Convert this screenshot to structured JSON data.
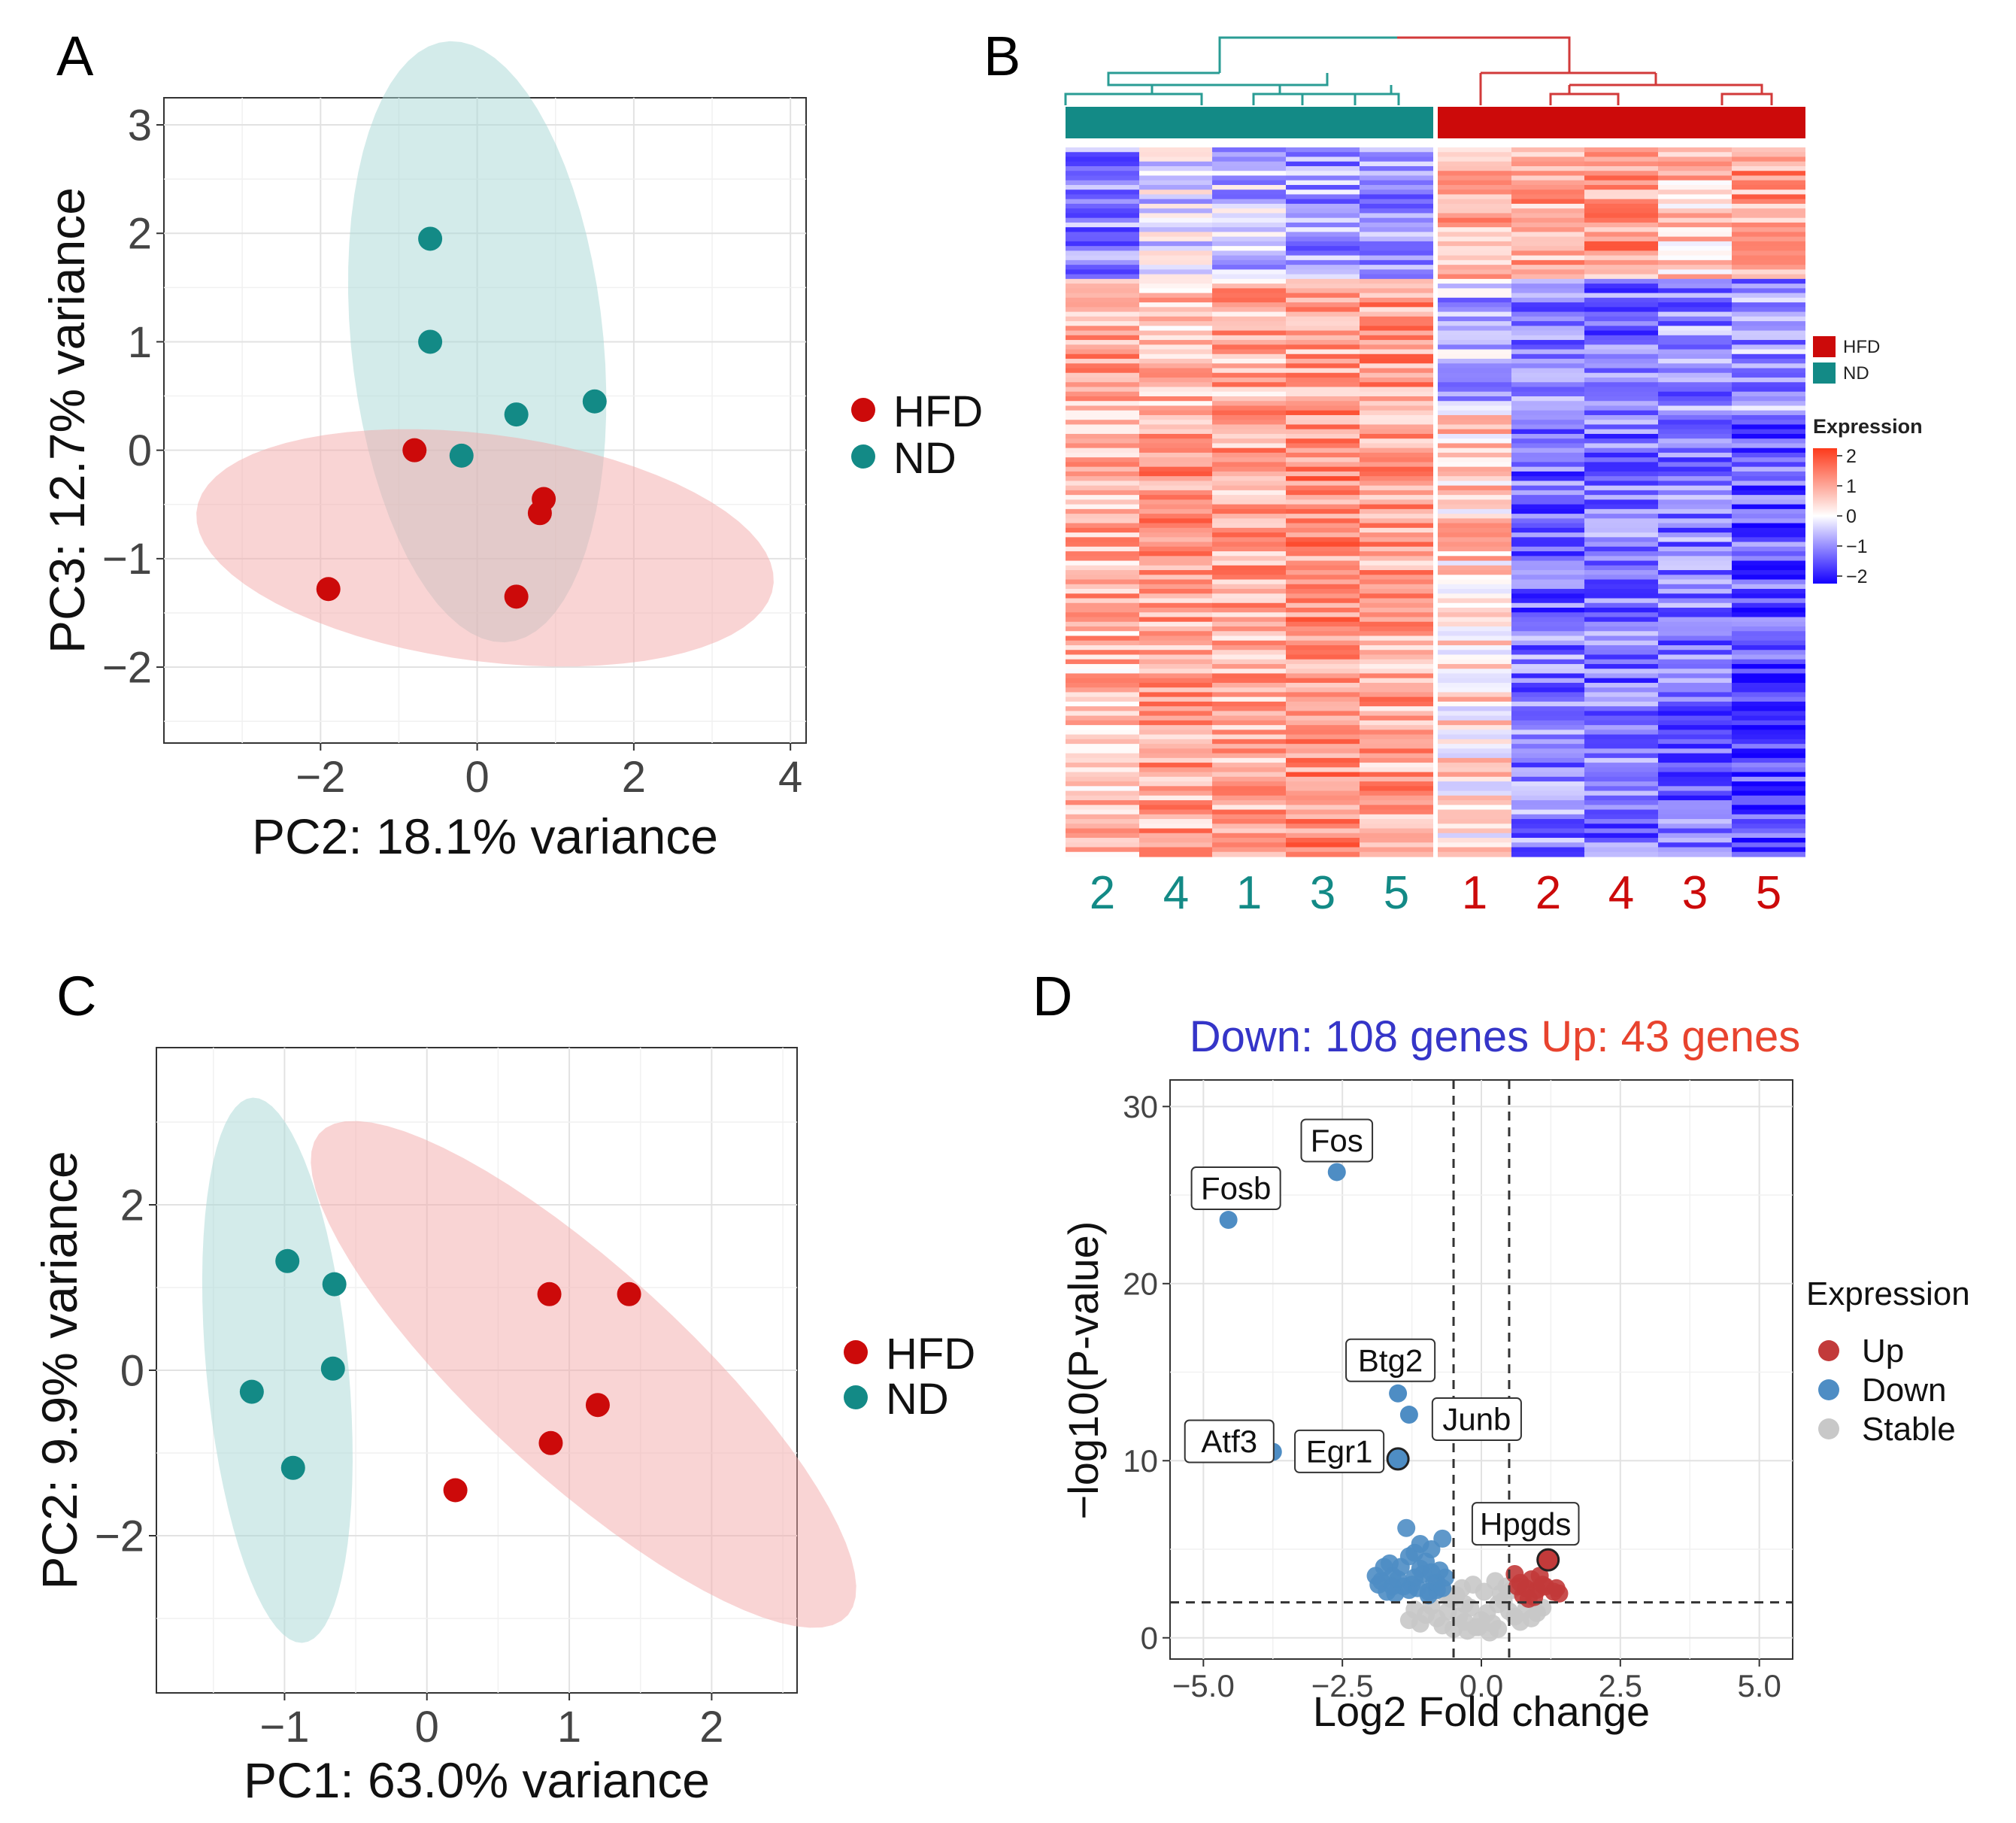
{
  "colors": {
    "hfd": "#cc0a0a",
    "nd": "#138a86",
    "hfd_ellipse": "#f4a9a9",
    "nd_ellipse": "#a8d8d6",
    "up": "#c23a3a",
    "down": "#4e8dc4",
    "stable": "#c8c8c8",
    "count_down": "#3535c8",
    "count_up": "#e8432e",
    "heat_high": "#fd3a1b",
    "heat_mid": "#ffffff",
    "heat_low": "#1400ff"
  },
  "panel_labels": {
    "a": "A",
    "b": "B",
    "c": "C",
    "d": "D"
  },
  "chart_data": [
    {
      "id": "A",
      "type": "scatter",
      "xlabel": "PC2: 18.1% variance",
      "ylabel": "PC3: 12.7% variance",
      "xlim": [
        -4.0,
        4.2
      ],
      "ylim": [
        -2.7,
        3.25
      ],
      "xticks": [
        -2,
        0,
        2,
        4
      ],
      "xtick_labels": [
        "−2",
        "0",
        "2",
        "4"
      ],
      "yticks": [
        -2,
        -1,
        0,
        1,
        2,
        3
      ],
      "ytick_labels": [
        "−2",
        "−1",
        "0",
        "1",
        "2",
        "3"
      ],
      "grid": true,
      "legend": {
        "entries": [
          "HFD",
          "ND"
        ],
        "placement": "right"
      },
      "ellipses": [
        {
          "group": "ND",
          "cx": 0.0,
          "cy": 1.0,
          "rx": 2.8,
          "ry": 1.6,
          "angle_deg": -80
        },
        {
          "group": "HFD",
          "cx": 0.1,
          "cy": -0.9,
          "rx": 3.7,
          "ry": 1.05,
          "angle_deg": -5
        }
      ],
      "series": [
        {
          "name": "HFD",
          "x": [
            -0.8,
            0.85,
            0.8,
            -1.9,
            0.5
          ],
          "y": [
            0.0,
            -0.45,
            -0.58,
            -1.28,
            -1.35
          ]
        },
        {
          "name": "ND",
          "x": [
            -0.6,
            -0.6,
            0.5,
            1.5,
            -0.2
          ],
          "y": [
            1.95,
            1.0,
            0.33,
            0.45,
            -0.05
          ]
        }
      ]
    },
    {
      "id": "B",
      "type": "heatmap",
      "column_labels": [
        "2",
        "4",
        "1",
        "3",
        "5",
        "1",
        "2",
        "4",
        "3",
        "5"
      ],
      "column_groups": [
        "ND",
        "ND",
        "ND",
        "ND",
        "ND",
        "HFD",
        "HFD",
        "HFD",
        "HFD",
        "HFD"
      ],
      "rows": 151,
      "legend": {
        "groups": [
          "HFD",
          "ND"
        ],
        "title": "Expression",
        "ticks": [
          "2",
          "1",
          "0",
          "−1",
          "−2"
        ],
        "range": [
          -2,
          2
        ]
      },
      "row_blocks": [
        {
          "rows": 28,
          "ND": [
            -0.9,
            -0.3,
            -0.5,
            -0.8,
            -1.0
          ],
          "HFD": [
            0.8,
            0.9,
            1.0,
            0.6,
            1.0
          ]
        },
        {
          "rows": 28,
          "ND": [
            0.9,
            0.7,
            0.8,
            0.9,
            1.0
          ],
          "HFD": [
            -0.6,
            -0.9,
            -1.1,
            -0.9,
            -0.8
          ]
        },
        {
          "rows": 45,
          "ND": [
            0.8,
            1.0,
            0.9,
            1.1,
            0.9
          ],
          "HFD": [
            0.5,
            -1.2,
            -1.1,
            -1.0,
            -1.3
          ]
        },
        {
          "rows": 50,
          "ND": [
            0.7,
            0.9,
            0.8,
            1.1,
            0.9
          ],
          "HFD": [
            0.3,
            -1.0,
            -1.1,
            -1.2,
            -1.5
          ]
        }
      ]
    },
    {
      "id": "C",
      "type": "scatter",
      "xlabel": "PC1: 63.0% variance",
      "ylabel": "PC2: 9.9% variance",
      "xlim": [
        -1.9,
        2.6
      ],
      "ylim": [
        -3.9,
        3.9
      ],
      "xticks": [
        -1,
        0,
        1,
        2
      ],
      "xtick_labels": [
        "−1",
        "0",
        "1",
        "2"
      ],
      "yticks": [
        -2,
        0,
        2
      ],
      "ytick_labels": [
        "−2",
        "0",
        "2"
      ],
      "grid": true,
      "legend": {
        "entries": [
          "HFD",
          "ND"
        ],
        "placement": "right"
      },
      "ellipses": [
        {
          "group": "ND",
          "cx": -1.05,
          "cy": 0.0,
          "rx": 3.3,
          "ry": 0.5,
          "angle_deg": -87
        },
        {
          "group": "HFD",
          "cx": 1.1,
          "cy": -0.05,
          "rx": 3.5,
          "ry": 0.9,
          "angle_deg": -60
        }
      ],
      "series": [
        {
          "name": "HFD",
          "x": [
            0.86,
            1.42,
            1.2,
            0.87,
            0.2
          ],
          "y": [
            0.92,
            0.92,
            -0.42,
            -0.88,
            -1.45
          ]
        },
        {
          "name": "ND",
          "x": [
            -0.98,
            -0.65,
            -0.66,
            -1.23,
            -0.94
          ],
          "y": [
            1.32,
            1.04,
            0.02,
            -0.26,
            -1.18
          ]
        }
      ]
    },
    {
      "id": "D",
      "type": "scatter",
      "title_down": "Down: 108 genes",
      "title_up": "Up: 43 genes",
      "xlabel": "Log2 Fold change",
      "ylabel": "−log10(P-value)",
      "xlim": [
        -5.6,
        5.6
      ],
      "ylim": [
        -1.2,
        31.5
      ],
      "xticks": [
        -5.0,
        -2.5,
        0.0,
        2.5,
        5.0
      ],
      "xtick_labels": [
        "−5.0",
        "−2.5",
        "0.0",
        "2.5",
        "5.0"
      ],
      "yticks": [
        0,
        10,
        20,
        30
      ],
      "ytick_labels": [
        "0",
        "10",
        "20",
        "30"
      ],
      "grid": true,
      "thresholds": {
        "fc": [
          -0.5,
          0.5
        ],
        "p": 2
      },
      "legend": {
        "title": "Expression",
        "entries": [
          "Up",
          "Down",
          "Stable"
        ],
        "placement": "right"
      },
      "labeled_genes": [
        {
          "name": "Fos",
          "x": -2.6,
          "y": 26.3
        },
        {
          "name": "Fosb",
          "x": -4.55,
          "y": 23.6
        },
        {
          "name": "Btg2",
          "x": -1.5,
          "y": 13.8
        },
        {
          "name": "Junb",
          "x": -1.3,
          "y": 12.6
        },
        {
          "name": "Egr1",
          "x": -1.5,
          "y": 10.1
        },
        {
          "name": "Atf3",
          "x": -3.75,
          "y": 10.5
        },
        {
          "name": "Hpgds",
          "x": 1.2,
          "y": 4.4
        }
      ],
      "series": [
        {
          "name": "Up",
          "x": [
            0.6,
            0.7,
            0.8,
            0.9,
            1.0,
            1.1,
            1.3,
            1.4,
            0.75,
            0.95,
            1.05,
            0.65,
            0.85,
            1.15,
            1.35
          ],
          "y": [
            3.6,
            3.1,
            2.8,
            3.3,
            2.7,
            3.0,
            2.6,
            2.5,
            2.4,
            2.3,
            3.5,
            2.9,
            2.2,
            2.9,
            2.8
          ]
        },
        {
          "name": "Down",
          "x": [
            -1.9,
            -1.85,
            -1.8,
            -1.7,
            -1.65,
            -1.6,
            -1.55,
            -1.45,
            -1.4,
            -1.35,
            -1.3,
            -1.25,
            -1.2,
            -1.15,
            -1.1,
            -1.05,
            -1.0,
            -0.95,
            -0.9,
            -0.85,
            -0.8,
            -0.75,
            -0.7,
            -0.65,
            -1.75,
            -1.5,
            -1.3,
            -1.1,
            -0.95,
            -0.8,
            -0.7,
            -1.6,
            -1.2,
            -0.9
          ],
          "y": [
            3.5,
            3.0,
            3.2,
            2.6,
            4.2,
            3.5,
            2.5,
            4.0,
            2.9,
            6.2,
            4.6,
            3.0,
            4.8,
            2.8,
            5.3,
            3.6,
            4.3,
            2.4,
            5.0,
            3.1,
            2.7,
            3.8,
            5.6,
            3.4,
            4.0,
            3.3,
            2.7,
            3.9,
            2.6,
            3.1,
            2.8,
            2.9,
            3.4,
            3.7
          ]
        },
        {
          "name": "Stable",
          "x": [
            -1.3,
            -1.2,
            -1.1,
            -1.0,
            -0.9,
            -0.8,
            -0.7,
            -0.6,
            -0.5,
            -0.4,
            -0.3,
            -0.2,
            -0.1,
            0.0,
            0.1,
            0.2,
            0.3,
            0.4,
            0.5,
            0.6,
            0.7,
            0.8,
            0.9,
            1.0,
            1.1,
            -0.45,
            -0.35,
            -0.15,
            0.05,
            0.25,
            0.35,
            -0.25,
            0.15,
            0.45,
            -0.55,
            -0.65,
            0.55,
            -0.05,
            0.3,
            -0.3
          ],
          "y": [
            1.0,
            1.6,
            0.8,
            1.3,
            1.8,
            1.1,
            0.7,
            1.5,
            0.5,
            1.2,
            0.9,
            1.7,
            0.6,
            1.0,
            1.4,
            0.8,
            1.9,
            2.1,
            1.5,
            1.2,
            0.9,
            1.6,
            1.1,
            1.4,
            1.7,
            2.4,
            2.8,
            3.0,
            2.6,
            3.2,
            2.5,
            0.4,
            0.3,
            2.9,
            2.2,
            2.5,
            2.7,
            0.6,
            0.5,
            1.9
          ]
        }
      ]
    }
  ]
}
